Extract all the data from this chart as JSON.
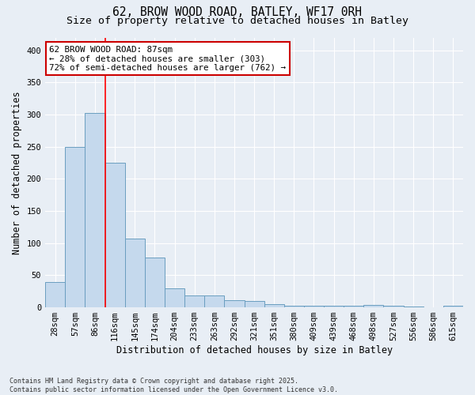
{
  "title_line1": "62, BROW WOOD ROAD, BATLEY, WF17 0RH",
  "title_line2": "Size of property relative to detached houses in Batley",
  "xlabel": "Distribution of detached houses by size in Batley",
  "ylabel": "Number of detached properties",
  "categories": [
    "28sqm",
    "57sqm",
    "86sqm",
    "116sqm",
    "145sqm",
    "174sqm",
    "204sqm",
    "233sqm",
    "263sqm",
    "292sqm",
    "321sqm",
    "351sqm",
    "380sqm",
    "409sqm",
    "439sqm",
    "468sqm",
    "498sqm",
    "527sqm",
    "556sqm",
    "586sqm",
    "615sqm"
  ],
  "values": [
    40,
    250,
    302,
    225,
    107,
    77,
    30,
    18,
    18,
    11,
    10,
    5,
    3,
    2,
    3,
    2,
    4,
    2,
    1,
    0,
    2
  ],
  "bar_color": "#c5d9ed",
  "bar_edge_color": "#6a9ec0",
  "background_color": "#e8eef5",
  "property_line_index": 2,
  "annotation_text": "62 BROW WOOD ROAD: 87sqm\n← 28% of detached houses are smaller (303)\n72% of semi-detached houses are larger (762) →",
  "annotation_box_facecolor": "#ffffff",
  "annotation_box_edgecolor": "#cc0000",
  "footer_line1": "Contains HM Land Registry data © Crown copyright and database right 2025.",
  "footer_line2": "Contains public sector information licensed under the Open Government Licence v3.0.",
  "ylim": [
    0,
    420
  ],
  "yticks": [
    0,
    50,
    100,
    150,
    200,
    250,
    300,
    350,
    400
  ],
  "grid_color": "#ffffff",
  "title_fontsize": 10.5,
  "subtitle_fontsize": 9.5,
  "tick_fontsize": 7.5,
  "axis_label_fontsize": 8.5,
  "annotation_fontsize": 7.8,
  "footer_fontsize": 6.0
}
